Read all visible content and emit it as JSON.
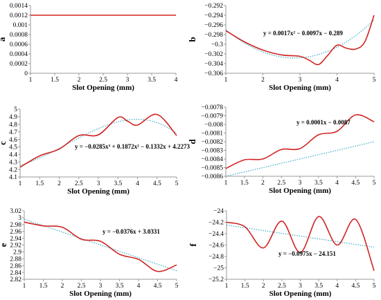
{
  "colors": {
    "series": "#d22222",
    "trend": "#45b0c9",
    "axis": "#999999",
    "text": "#000000"
  },
  "chart_data": [
    {
      "id": "a",
      "type": "line",
      "ylabel": "a",
      "xlabel": "Slot Opening (mm)",
      "xlim": [
        1,
        4
      ],
      "ylim": [
        0,
        0.0014
      ],
      "xticks": [
        "1",
        "1.5",
        "2",
        "2.5",
        "3",
        "3.5",
        "4"
      ],
      "yticks": [
        "0",
        "0.0002",
        "0.0004",
        "0.0006",
        "0.0008",
        "0.001",
        "0.0012",
        "0.0014"
      ],
      "series": [
        {
          "x": [
            1,
            4
          ],
          "y": [
            0.0012,
            0.0012
          ]
        }
      ],
      "trendline": null,
      "equation": ""
    },
    {
      "id": "b",
      "type": "line",
      "ylabel": "b",
      "xlabel": "Slot Opening (mm)",
      "xlim": [
        1,
        5
      ],
      "ylim": [
        -0.306,
        -0.292
      ],
      "xticks": [
        "1",
        "2",
        "3",
        "4",
        "5"
      ],
      "yticks": [
        "-0.292",
        "-0.294",
        "-0.296",
        "-0.298",
        "-0.3",
        "-0.302",
        "-0.304",
        "-0.306"
      ],
      "series": [
        {
          "x": [
            1,
            1.5,
            2,
            2.5,
            3,
            3.25,
            3.5,
            3.75,
            4,
            4.25,
            4.5,
            4.75,
            5
          ],
          "y": [
            -0.2972,
            -0.2995,
            -0.3012,
            -0.3022,
            -0.3025,
            -0.3033,
            -0.3042,
            -0.3023,
            -0.3002,
            -0.3008,
            -0.301,
            -0.2995,
            -0.294
          ]
        }
      ],
      "trendline": {
        "kind": "poly",
        "coef": [
          0.0017,
          -0.0097,
          -0.289
        ]
      },
      "equation": "y = 0.0017x² − 0.0097x − 0.289"
    },
    {
      "id": "c",
      "type": "line",
      "ylabel": "c",
      "xlabel": "Slot Opening (mm)",
      "xlim": [
        1,
        5
      ],
      "ylim": [
        4.1,
        5
      ],
      "xticks": [
        "1",
        "1.5",
        "2",
        "2.5",
        "3",
        "3.5",
        "4",
        "4.5",
        "5"
      ],
      "yticks": [
        "4.1",
        "4.2",
        "4.3",
        "4.4",
        "4.5",
        "4.6",
        "4.7",
        "4.8",
        "4.9",
        "5"
      ],
      "series": [
        {
          "x": [
            1,
            1.5,
            2,
            2.5,
            3,
            3.5,
            3.75,
            4,
            4.5,
            5
          ],
          "y": [
            4.23,
            4.38,
            4.47,
            4.65,
            4.66,
            4.89,
            4.84,
            4.79,
            4.93,
            4.65
          ]
        }
      ],
      "trendline": {
        "kind": "poly",
        "coef": [
          -0.0285,
          0.1872,
          -0.1332,
          4.2273
        ]
      },
      "equation": "y = −0.0285x³ + 0.1872x² − 0.1332x + 4.2273"
    },
    {
      "id": "d",
      "type": "line",
      "ylabel": "d",
      "xlabel": "Slot Opening (mm)",
      "xlim": [
        1,
        5
      ],
      "ylim": [
        -0.0086,
        -0.0078
      ],
      "xticks": [
        "1",
        "1.5",
        "2",
        "2.5",
        "3",
        "3.5",
        "4",
        "4.5",
        "5"
      ],
      "yticks": [
        "-0.0078",
        "-0.0079",
        "-0.008",
        "-0.0081",
        "-0.0082",
        "-0.0083",
        "-0.0084",
        "-0.0085",
        "-0.0086"
      ],
      "series": [
        {
          "x": [
            1,
            1.5,
            2,
            2.5,
            3,
            3.5,
            4,
            4.5,
            5
          ],
          "y": [
            -0.00851,
            -0.00841,
            -0.0084,
            -0.00829,
            -0.00828,
            -0.00812,
            -0.00808,
            -0.00789,
            -0.00797
          ]
        }
      ],
      "trendline": {
        "kind": "poly",
        "coef": [
          0.0001,
          -0.0087
        ]
      },
      "equation": "y = 0.0001x − 0.0087"
    },
    {
      "id": "e",
      "type": "line",
      "ylabel": "e",
      "xlabel": "Slot Opening (mm)",
      "xlim": [
        1,
        5
      ],
      "ylim": [
        2.82,
        3.02
      ],
      "xticks": [
        "1",
        "1.5",
        "2",
        "2.5",
        "3",
        "3.5",
        "4",
        "4.5",
        "5"
      ],
      "yticks": [
        "2.82",
        "2.84",
        "2.86",
        "2.88",
        "2.9",
        "2.92",
        "2.94",
        "2.96",
        "2.98",
        "3",
        "3.02"
      ],
      "series": [
        {
          "x": [
            1,
            1.5,
            2,
            2.5,
            3,
            3.5,
            4,
            4.5,
            5
          ],
          "y": [
            2.987,
            2.976,
            2.972,
            2.937,
            2.931,
            2.893,
            2.878,
            2.843,
            2.862
          ]
        }
      ],
      "trendline": {
        "kind": "poly",
        "coef": [
          -0.0376,
          3.0331
        ]
      },
      "equation": "y = −0.0376x + 3.0331"
    },
    {
      "id": "f",
      "type": "line",
      "ylabel": "f",
      "xlabel": "Slot Opening (mm)",
      "xlim": [
        1,
        5
      ],
      "ylim": [
        -25.2,
        -24
      ],
      "xticks": [
        "1",
        "1.5",
        "2",
        "2.5",
        "3",
        "3.5",
        "4",
        "4.5",
        "5"
      ],
      "yticks": [
        "-24",
        "-24.2",
        "-24.4",
        "-24.6",
        "-24.8",
        "-25",
        "-25.2"
      ],
      "series": [
        {
          "x": [
            1,
            1.5,
            2,
            2.5,
            3,
            3.5,
            4,
            4.5,
            5
          ],
          "y": [
            -24.2,
            -24.28,
            -24.65,
            -24.18,
            -24.73,
            -24.1,
            -24.6,
            -24.15,
            -25.05
          ]
        }
      ],
      "trendline": {
        "kind": "poly",
        "coef": [
          -0.0975,
          -24.151
        ]
      },
      "equation": "y = −0.0975x − 24.151"
    }
  ]
}
